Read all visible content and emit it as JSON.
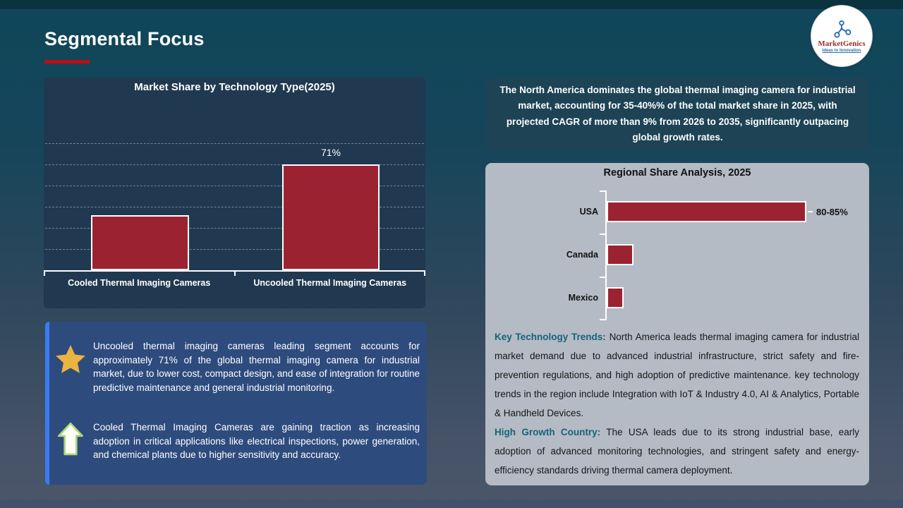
{
  "slide": {
    "title": "Segmental Focus",
    "accent_color": "#c00c12",
    "background_top_color": "#0f4659",
    "background_bottom_color": "#4b5669"
  },
  "logo": {
    "brand": "MarketGenics",
    "tagline": "Ideas to Innovation",
    "icon": "molecule-icon",
    "brand_color": "#9e2b28",
    "tagline_color": "#2d6bb3"
  },
  "chart_data": [
    {
      "type": "bar",
      "orientation": "vertical",
      "title": "Market Share by Technology Type(2025)",
      "categories": [
        "Cooled Thermal Imaging Cameras",
        "Uncooled Thermal Imaging Cameras"
      ],
      "values": [
        37,
        71
      ],
      "data_labels": [
        "",
        "71%"
      ],
      "bar_color": "#9b2331",
      "bar_border_color": "#ffffff",
      "grid": true,
      "legend": false,
      "xlabel": "",
      "ylabel": ""
    },
    {
      "type": "bar",
      "orientation": "horizontal",
      "title": "Regional Share Analysis, 2025",
      "categories": [
        "USA",
        "Canada",
        "Mexico"
      ],
      "values": [
        82.5,
        11,
        7
      ],
      "data_labels": [
        "80-85%",
        "",
        ""
      ],
      "bar_color": "#9b2331",
      "bar_border_color": "#ffffff",
      "grid": false,
      "legend": false,
      "xlabel": "",
      "ylabel": ""
    }
  ],
  "highlight": {
    "text": "The North America dominates the global thermal imaging camera for industrial market, accounting for 35-40%% of the total market share in 2025, with projected CAGR of more than 9% from 2026 to 2035, significantly outpacing global growth rates."
  },
  "regional_notes": {
    "paragraphs": [
      {
        "lead": "Key Technology Trends:",
        "lead_color": "#17637a",
        "text": "North America leads thermal imaging camera for industrial market demand due to advanced industrial infrastructure, strict safety and fire-prevention regulations, and high adoption of predictive maintenance. key technology trends in the region include Integration with IoT & Industry 4.0, AI & Analytics, Portable & Handheld Devices."
      },
      {
        "lead": "High Growth Country:",
        "lead_color": "#17637a",
        "text": "The USA leads due to its strong industrial base, early adoption of advanced monitoring technologies, and stringent safety and energy-efficiency standards driving thermal camera deployment."
      }
    ]
  },
  "insights": {
    "items": [
      {
        "icon": "star-icon",
        "icon_color": "#eab440",
        "text": "Uncooled thermal imaging cameras leading segment accounts for approximately 71% of the global thermal imaging camera for industrial market, due to lower cost, compact design, and ease of integration for routine predictive maintenance and general industrial monitoring."
      },
      {
        "icon": "arrow-up-icon",
        "icon_color": "#fdfff6",
        "text": "Cooled Thermal Imaging Cameras are gaining traction as increasing adoption in critical applications like electrical inspections, power generation, and chemical plants due to higher sensitivity and accuracy."
      }
    ]
  }
}
